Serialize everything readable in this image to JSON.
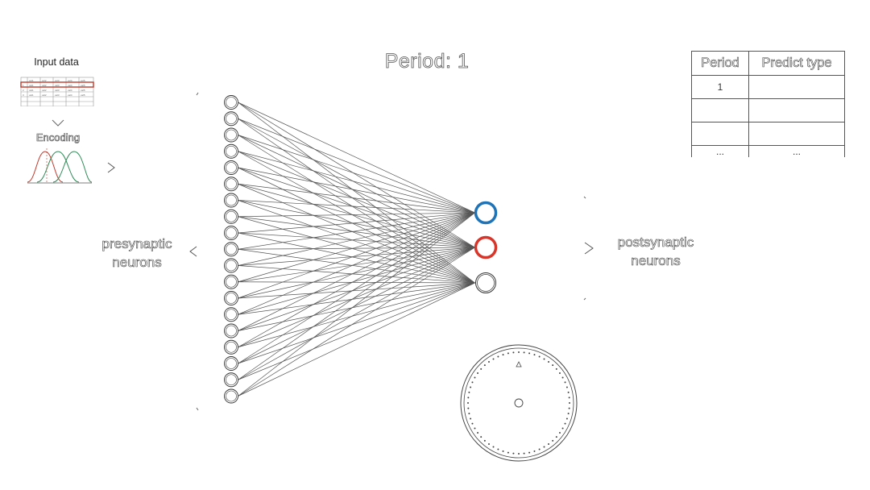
{
  "title": "Period: 1",
  "input_panel": {
    "label": "Input data",
    "encoding_label": "Encoding"
  },
  "labels": {
    "presynaptic": [
      "presynaptic",
      "neurons"
    ],
    "postsynaptic": [
      "postsynaptic",
      "neurons"
    ]
  },
  "predict_table": {
    "headers": [
      "Period",
      "Predict type"
    ],
    "rows": [
      [
        "1",
        ""
      ],
      [
        "",
        ""
      ],
      [
        "",
        ""
      ]
    ],
    "ellipsis": [
      "...",
      "..."
    ]
  },
  "network": {
    "presynaptic_count": 19,
    "postsynaptic_count": 3,
    "output_colors": [
      "#1f74b8",
      "#d9362b",
      "#ffffff"
    ]
  },
  "colors": {
    "connection": "#555555",
    "highlight_row": "#c0392b",
    "gauss_curves": [
      "#c0392b",
      "#2e8b57",
      "#2e8b57",
      "#2e8b57"
    ]
  }
}
